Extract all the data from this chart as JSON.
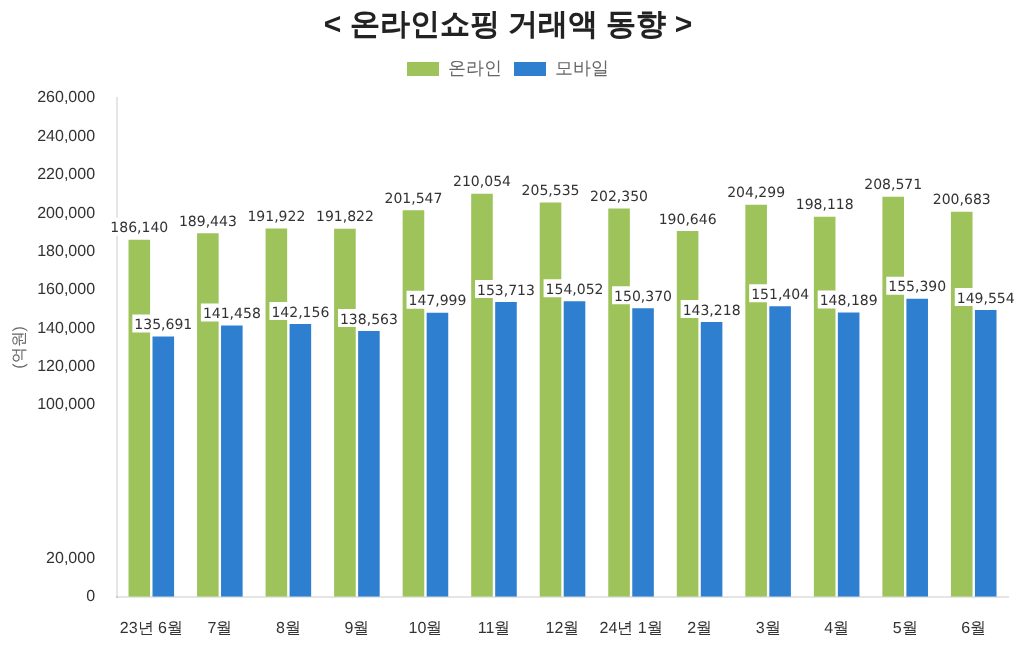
{
  "chart_data": {
    "type": "bar",
    "title": "< 온라인쇼핑 거래액 동향 >",
    "ylabel": "(억원)",
    "categories": [
      "23년 6월",
      "7월",
      "8월",
      "9월",
      "10월",
      "11월",
      "12월",
      "24년 1월",
      "2월",
      "3월",
      "4월",
      "5월",
      "6월"
    ],
    "series": [
      {
        "name": "온라인",
        "color": "#9dc35a",
        "values": [
          186140,
          189443,
          191922,
          191822,
          201547,
          210054,
          205535,
          202350,
          190646,
          204299,
          198118,
          208571,
          200683
        ],
        "value_labels": [
          "186,140",
          "189,443",
          "191,922",
          "191,822",
          "201,547",
          "210,054",
          "205,535",
          "202,350",
          "190,646",
          "204,299",
          "198,118",
          "208,571",
          "200,683"
        ]
      },
      {
        "name": "모바일",
        "color": "#2f7fd0",
        "values": [
          135691,
          141458,
          142156,
          138563,
          147999,
          153713,
          154052,
          150370,
          143218,
          151404,
          148189,
          155390,
          149554
        ],
        "value_labels": [
          "135,691",
          "141,458",
          "142,156",
          "138,563",
          "147,999",
          "153,713",
          "154,052",
          "150,370",
          "143,218",
          "151,404",
          "148,189",
          "155,390",
          "149,554"
        ]
      }
    ],
    "ylim": [
      0,
      260000
    ],
    "yticks": [
      {
        "value": 0,
        "label": "0"
      },
      {
        "value": 20000,
        "label": "20,000"
      },
      {
        "value": 100000,
        "label": "100,000"
      },
      {
        "value": 120000,
        "label": "120,000"
      },
      {
        "value": 140000,
        "label": "140,000"
      },
      {
        "value": 160000,
        "label": "160,000"
      },
      {
        "value": 180000,
        "label": "180,000"
      },
      {
        "value": 200000,
        "label": "200,000"
      },
      {
        "value": 220000,
        "label": "220,000"
      },
      {
        "value": 240000,
        "label": "240,000"
      },
      {
        "value": 260000,
        "label": "260,000"
      }
    ],
    "legend": "top",
    "grid": false
  }
}
